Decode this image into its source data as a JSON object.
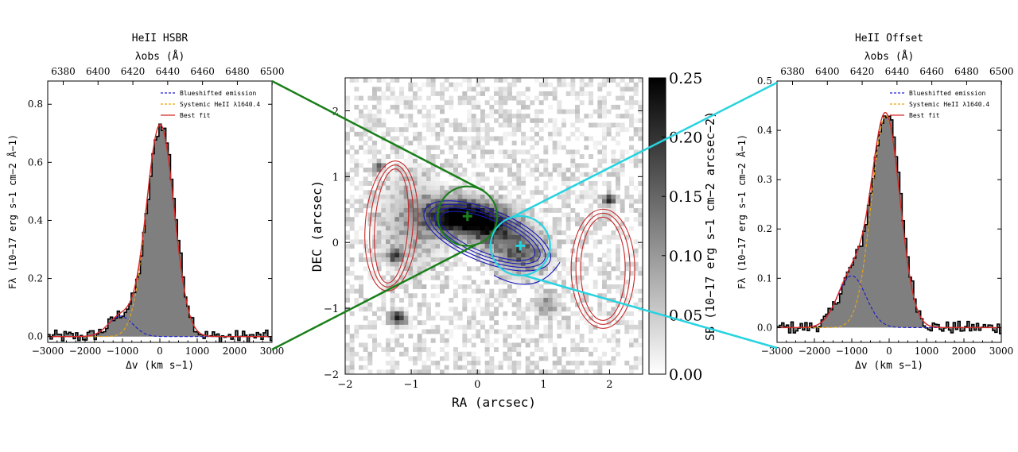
{
  "chart_data": [
    {
      "type": "line",
      "panel": "left",
      "title": "HeII HSBR",
      "top_axis_label": "λobs (Å)",
      "top_ticks": [
        "6380",
        "6400",
        "6420",
        "6440",
        "6460",
        "6480",
        "6500"
      ],
      "top_tick_values": [
        6380,
        6400,
        6420,
        6440,
        6460,
        6480,
        6500
      ],
      "xlabel": "Δv (km s−1)",
      "ylabel": "Fλ (10−17 erg s−1 cm−2 Å−1)",
      "xlim": [
        -3000,
        3000
      ],
      "ylim": [
        -0.02,
        0.88
      ],
      "x_ticks": [
        -3000,
        -2000,
        -1000,
        0,
        1000,
        2000,
        3000
      ],
      "y_ticks": [
        0.0,
        0.2,
        0.4,
        0.6,
        0.8
      ],
      "y_tick_labels": [
        "0.0",
        "0.2",
        "0.4",
        "0.6",
        "0.8"
      ],
      "legend": {
        "placement": "top-right",
        "entries": [
          {
            "label": "Blueshifted emission",
            "color": "#1f1fcf",
            "style": "dashed"
          },
          {
            "label": "Systemic HeII λ1640.4",
            "color": "#e8a317",
            "style": "dashed"
          },
          {
            "label": "Best fit",
            "color": "#d62728",
            "style": "solid"
          }
        ]
      },
      "components": {
        "systemic": {
          "amp": 0.73,
          "center": 10,
          "sigma": 370
        },
        "blue": {
          "amp": 0.07,
          "center": -1050,
          "sigma": 330
        }
      }
    },
    {
      "type": "heatmap",
      "panel": "center",
      "xlabel": "RA (arcsec)",
      "ylabel": "DEC (arcsec)",
      "xlim": [
        -2,
        2.5
      ],
      "ylim": [
        -2,
        2.5
      ],
      "x_ticks": [
        -2,
        -1,
        0,
        1,
        2
      ],
      "y_ticks": [
        -2,
        -1,
        0,
        1,
        2
      ],
      "colorbar_label": "SB (10−17 erg s−1 cm−2 arcsec−2)",
      "colorbar_ticks": [
        "0.00",
        "0.05",
        "0.10",
        "0.15",
        "0.20",
        "0.25"
      ],
      "colorbar_tick_values": [
        0.0,
        0.05,
        0.1,
        0.15,
        0.2,
        0.25
      ],
      "apertures": [
        {
          "name": "HSBR",
          "color": "#1a7f1a",
          "ra": -0.15,
          "dec": 0.4,
          "radius": 0.45
        },
        {
          "name": "Offset",
          "color": "#27d3e0",
          "ra": 0.65,
          "dec": -0.05,
          "radius": 0.45
        }
      ]
    },
    {
      "type": "line",
      "panel": "right",
      "title": "HeII Offset",
      "top_axis_label": "λobs (Å)",
      "top_ticks": [
        "6380",
        "6400",
        "6420",
        "6440",
        "6460",
        "6480",
        "6500"
      ],
      "top_tick_values": [
        6380,
        6400,
        6420,
        6440,
        6460,
        6480,
        6500
      ],
      "xlabel": "Δv (km s−1)",
      "ylabel": "Fλ (10−17 erg s−1 cm−2 Å−1)",
      "xlim": [
        -3000,
        3000
      ],
      "ylim": [
        -0.03,
        0.5
      ],
      "x_ticks": [
        -3000,
        -2000,
        -1000,
        0,
        1000,
        2000,
        3000
      ],
      "y_ticks": [
        0.0,
        0.1,
        0.2,
        0.3,
        0.4,
        0.5
      ],
      "y_tick_labels": [
        "0.0",
        "0.1",
        "0.2",
        "0.3",
        "0.4",
        "0.5"
      ],
      "legend": {
        "placement": "top-right",
        "entries": [
          {
            "label": "Blueshifted emission",
            "color": "#1f1fcf",
            "style": "dashed"
          },
          {
            "label": "Systemic HeII λ1640.4",
            "color": "#e8a317",
            "style": "dashed"
          },
          {
            "label": "Best fit",
            "color": "#d62728",
            "style": "solid"
          }
        ]
      },
      "components": {
        "systemic": {
          "amp": 0.43,
          "center": -90,
          "sigma": 380
        },
        "blue": {
          "amp": 0.105,
          "center": -1000,
          "sigma": 380
        }
      }
    }
  ]
}
